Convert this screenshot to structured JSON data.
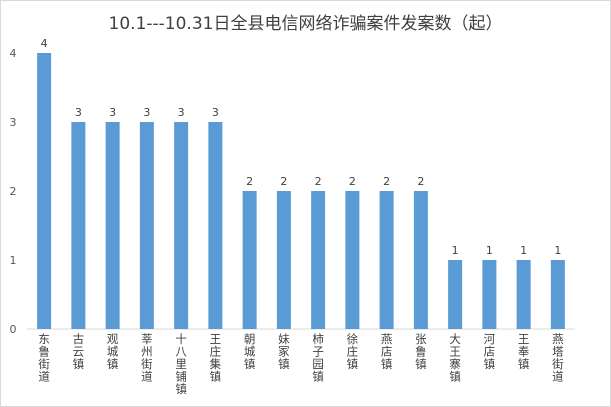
{
  "chart_data": {
    "type": "bar",
    "title": "10.1---10.31日全县电信网络诈骗案件发案数（起）",
    "xlabel": "",
    "ylabel": "",
    "categories": [
      "东鲁街道",
      "古云镇",
      "观城镇",
      "莘州街道",
      "十八里铺镇",
      "王庄集镇",
      "朝城镇",
      "妹冢镇",
      "柿子园镇",
      "徐庄镇",
      "燕店镇",
      "张鲁镇",
      "大王寨镇",
      "河店镇",
      "王奉镇",
      "燕塔街道"
    ],
    "values": [
      4,
      3,
      3,
      3,
      3,
      3,
      2,
      2,
      2,
      2,
      2,
      2,
      1,
      1,
      1,
      1
    ],
    "ylim": [
      0,
      4
    ],
    "yticks": [
      "0",
      "1",
      "2",
      "3",
      "4"
    ],
    "grid": false,
    "legend": "none",
    "data_labels": true,
    "bar_color": "#5b9bd5"
  }
}
